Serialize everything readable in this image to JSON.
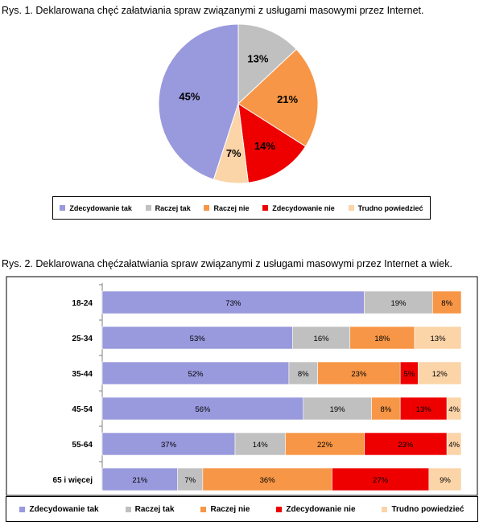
{
  "chart_data": [
    {
      "type": "pie",
      "title": "Rys. 1. Deklarowana chęć załatwiania spraw związanymi z usługami masowymi przez Internet.",
      "categories": [
        "Zdecydowanie tak",
        "Raczej tak",
        "Raczej nie",
        "Zdecydowanie nie",
        "Trudno powiedzieć"
      ],
      "values": [
        45,
        13,
        21,
        14,
        7
      ],
      "labels": [
        "45%",
        "13%",
        "21%",
        "14%",
        "7%"
      ],
      "legend_position": "bottom"
    },
    {
      "type": "bar",
      "orientation": "horizontal",
      "stacked": true,
      "title": "Rys. 2. Deklarowana chęćzałatwiania spraw związanymi z usługami masowymi przez Internet a wiek.",
      "categories": [
        "18-24",
        "25-34",
        "35-44",
        "45-54",
        "55-64",
        "65 i więcej"
      ],
      "series": [
        {
          "name": "Zdecydowanie tak",
          "values": [
            73,
            53,
            52,
            56,
            37,
            21
          ],
          "labels": [
            "73%",
            "53%",
            "52%",
            "56%",
            "37%",
            "21%"
          ]
        },
        {
          "name": "Raczej tak",
          "values": [
            19,
            16,
            8,
            19,
            14,
            7
          ],
          "labels": [
            "19%",
            "16%",
            "8%",
            "19%",
            "14%",
            "7%"
          ]
        },
        {
          "name": "Raczej nie",
          "values": [
            8,
            18,
            23,
            8,
            22,
            36
          ],
          "labels": [
            "8%",
            "18%",
            "23%",
            "8%",
            "22%",
            "36%"
          ]
        },
        {
          "name": "Zdecydowanie nie",
          "values": [
            0,
            0,
            5,
            13,
            23,
            27
          ],
          "labels": [
            "",
            "",
            "5%",
            "13%",
            "23%",
            "27%"
          ]
        },
        {
          "name": "Trudno powiedzieć",
          "values": [
            0,
            13,
            12,
            4,
            4,
            9
          ],
          "labels": [
            "",
            "13%",
            "12%",
            "4%",
            "4%",
            "9%"
          ]
        }
      ],
      "xlim": [
        0,
        100
      ],
      "legend_position": "bottom"
    }
  ],
  "colors": [
    "#9999dd",
    "#c0c0c0",
    "#f79646",
    "#ee0000",
    "#fbd4a8"
  ]
}
